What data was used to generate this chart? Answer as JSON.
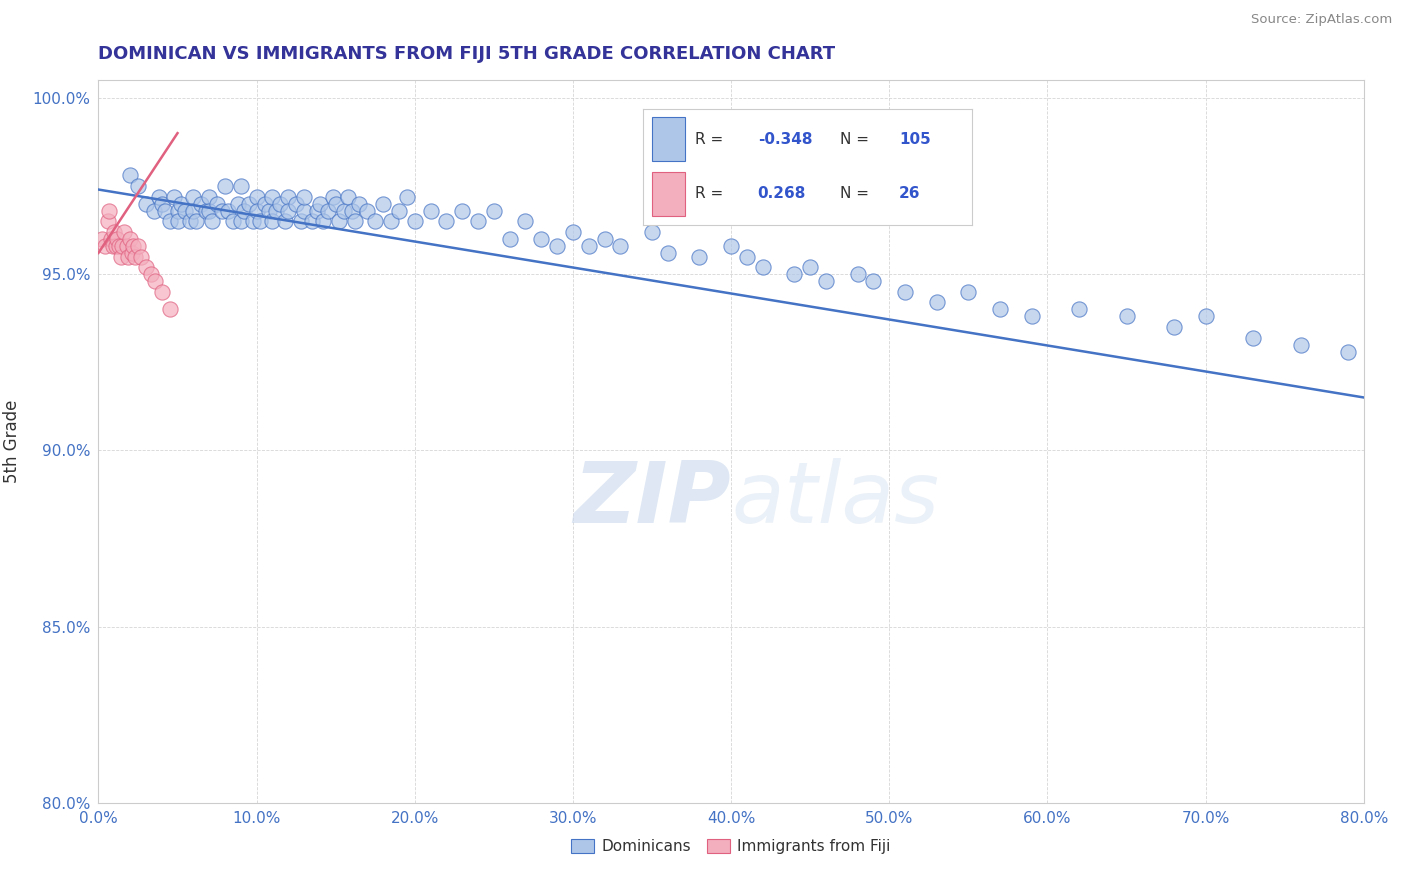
{
  "title": "DOMINICAN VS IMMIGRANTS FROM FIJI 5TH GRADE CORRELATION CHART",
  "source_text": "Source: ZipAtlas.com",
  "ylabel": "5th Grade",
  "x_min": 0.0,
  "x_max": 0.8,
  "y_min": 0.8,
  "y_max": 1.005,
  "x_ticks": [
    0.0,
    0.1,
    0.2,
    0.3,
    0.4,
    0.5,
    0.6,
    0.7,
    0.8
  ],
  "x_tick_labels": [
    "0.0%",
    "10.0%",
    "20.0%",
    "30.0%",
    "40.0%",
    "50.0%",
    "60.0%",
    "70.0%",
    "80.0%"
  ],
  "y_ticks": [
    0.8,
    0.85,
    0.9,
    0.95,
    1.0
  ],
  "y_tick_labels": [
    "80.0%",
    "85.0%",
    "90.0%",
    "95.0%",
    "100.0%"
  ],
  "blue_color": "#AEC6E8",
  "pink_color": "#F4AFBE",
  "blue_edge_color": "#4472C4",
  "pink_edge_color": "#E06080",
  "blue_line_color": "#4472C4",
  "pink_line_color": "#E06080",
  "legend_blue_R": "-0.348",
  "legend_blue_N": "105",
  "legend_pink_R": "0.268",
  "legend_pink_N": "26",
  "legend_label_blue": "Dominicans",
  "legend_label_pink": "Immigrants from Fiji",
  "watermark_zip": "ZIP",
  "watermark_atlas": "atlas",
  "blue_trend_x": [
    0.0,
    0.8
  ],
  "blue_trend_y": [
    0.974,
    0.915
  ],
  "pink_trend_x": [
    0.0,
    0.05
  ],
  "pink_trend_y": [
    0.956,
    0.99
  ],
  "blue_points_x": [
    0.02,
    0.025,
    0.03,
    0.035,
    0.038,
    0.04,
    0.042,
    0.045,
    0.048,
    0.05,
    0.05,
    0.052,
    0.055,
    0.058,
    0.06,
    0.06,
    0.062,
    0.065,
    0.068,
    0.07,
    0.07,
    0.072,
    0.075,
    0.078,
    0.08,
    0.082,
    0.085,
    0.088,
    0.09,
    0.09,
    0.092,
    0.095,
    0.098,
    0.1,
    0.1,
    0.102,
    0.105,
    0.108,
    0.11,
    0.11,
    0.112,
    0.115,
    0.118,
    0.12,
    0.12,
    0.125,
    0.128,
    0.13,
    0.13,
    0.135,
    0.138,
    0.14,
    0.142,
    0.145,
    0.148,
    0.15,
    0.152,
    0.155,
    0.158,
    0.16,
    0.162,
    0.165,
    0.17,
    0.175,
    0.18,
    0.185,
    0.19,
    0.195,
    0.2,
    0.21,
    0.22,
    0.23,
    0.24,
    0.25,
    0.26,
    0.27,
    0.28,
    0.29,
    0.3,
    0.31,
    0.32,
    0.33,
    0.35,
    0.36,
    0.38,
    0.4,
    0.41,
    0.42,
    0.44,
    0.45,
    0.46,
    0.48,
    0.49,
    0.51,
    0.53,
    0.55,
    0.57,
    0.59,
    0.62,
    0.65,
    0.68,
    0.7,
    0.73,
    0.76,
    0.79
  ],
  "blue_points_y": [
    0.978,
    0.975,
    0.97,
    0.968,
    0.972,
    0.97,
    0.968,
    0.965,
    0.972,
    0.968,
    0.965,
    0.97,
    0.968,
    0.965,
    0.972,
    0.968,
    0.965,
    0.97,
    0.968,
    0.972,
    0.968,
    0.965,
    0.97,
    0.968,
    0.975,
    0.968,
    0.965,
    0.97,
    0.975,
    0.965,
    0.968,
    0.97,
    0.965,
    0.972,
    0.968,
    0.965,
    0.97,
    0.968,
    0.972,
    0.965,
    0.968,
    0.97,
    0.965,
    0.972,
    0.968,
    0.97,
    0.965,
    0.968,
    0.972,
    0.965,
    0.968,
    0.97,
    0.965,
    0.968,
    0.972,
    0.97,
    0.965,
    0.968,
    0.972,
    0.968,
    0.965,
    0.97,
    0.968,
    0.965,
    0.97,
    0.965,
    0.968,
    0.972,
    0.965,
    0.968,
    0.965,
    0.968,
    0.965,
    0.968,
    0.96,
    0.965,
    0.96,
    0.958,
    0.962,
    0.958,
    0.96,
    0.958,
    0.962,
    0.956,
    0.955,
    0.958,
    0.955,
    0.952,
    0.95,
    0.952,
    0.948,
    0.95,
    0.948,
    0.945,
    0.942,
    0.945,
    0.94,
    0.938,
    0.94,
    0.938,
    0.935,
    0.938,
    0.932,
    0.93,
    0.928
  ],
  "pink_points_x": [
    0.002,
    0.004,
    0.006,
    0.007,
    0.008,
    0.009,
    0.01,
    0.011,
    0.012,
    0.013,
    0.014,
    0.015,
    0.016,
    0.018,
    0.019,
    0.02,
    0.021,
    0.022,
    0.023,
    0.025,
    0.027,
    0.03,
    0.033,
    0.036,
    0.04,
    0.045
  ],
  "pink_points_y": [
    0.96,
    0.958,
    0.965,
    0.968,
    0.96,
    0.958,
    0.962,
    0.958,
    0.96,
    0.958,
    0.955,
    0.958,
    0.962,
    0.958,
    0.955,
    0.96,
    0.956,
    0.958,
    0.955,
    0.958,
    0.955,
    0.952,
    0.95,
    0.948,
    0.945,
    0.94
  ]
}
